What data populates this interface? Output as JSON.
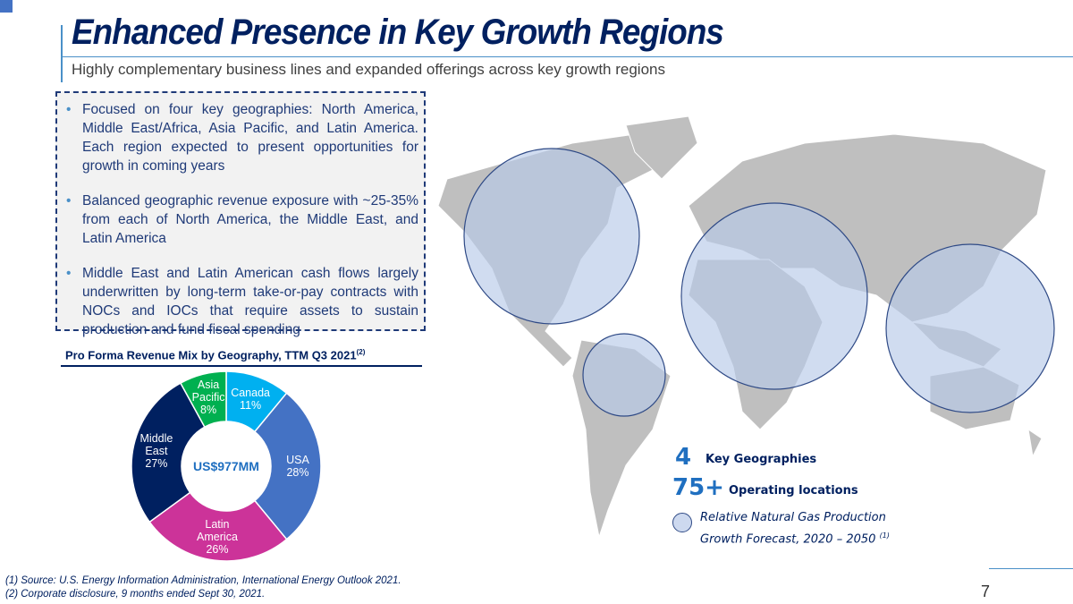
{
  "header": {
    "title": "Enhanced Presence in Key Growth Regions",
    "subtitle": "Highly complementary business lines and expanded offerings across key growth regions"
  },
  "bullets": [
    "Focused on four key geographies: North America, Middle East/Africa, Asia Pacific, and Latin America. Each region expected to present opportunities for growth in coming years",
    "Balanced geographic revenue exposure with ~25-35% from each of North America, the Middle East, and Latin America",
    "Middle East and Latin American cash flows largely underwritten by long-term take-or-pay contracts with NOCs and IOCs that require assets to sustain production and fund fiscal spending"
  ],
  "chart_data": {
    "type": "pie",
    "title": "Pro Forma Revenue Mix by Geography, TTM Q3 2021",
    "title_sup": "(2)",
    "center_label": "US$977MM",
    "categories": [
      "Canada",
      "USA",
      "Latin America",
      "Middle East",
      "Asia Pacific"
    ],
    "label_lines": [
      [
        "Canada"
      ],
      [
        "USA"
      ],
      [
        "Latin",
        "America"
      ],
      [
        "Middle",
        "East"
      ],
      [
        "Asia",
        "Pacific"
      ]
    ],
    "values": [
      11,
      28,
      26,
      27,
      8
    ],
    "value_labels": [
      "11%",
      "28%",
      "26%",
      "27%",
      "8%"
    ],
    "colors": [
      "#00B0F0",
      "#4472C4",
      "#CC3399",
      "#002060",
      "#00B050"
    ]
  },
  "stats": [
    {
      "value": "4",
      "label": "Key Geographies"
    },
    {
      "value": "75+",
      "label": "Operating locations"
    }
  ],
  "legend": {
    "line1": "Relative Natural Gas Production",
    "line2": "Growth Forecast, 2020 – 2050",
    "sup": "(1)"
  },
  "footnotes": [
    "(1) Source: U.S. Energy Information Administration, International Energy Outlook 2021.",
    "(2) Corporate disclosure, 9 months ended Sept 30, 2021."
  ],
  "page_number": "7"
}
